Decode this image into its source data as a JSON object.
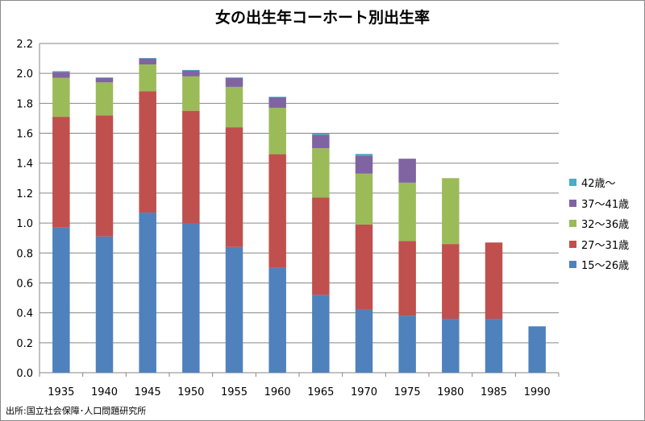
{
  "chart_data": {
    "type": "bar",
    "stacked": true,
    "title": "女の出生年コーホート別出生率",
    "xlabel": "",
    "ylabel": "",
    "categories": [
      "1935",
      "1940",
      "1945",
      "1950",
      "1955",
      "1960",
      "1965",
      "1970",
      "1975",
      "1980",
      "1985",
      "1990"
    ],
    "ylim": [
      0,
      2.2
    ],
    "yticks": [
      "0.0",
      "0.2",
      "0.4",
      "0.6",
      "0.8",
      "1.0",
      "1.2",
      "1.4",
      "1.6",
      "1.8",
      "2.0",
      "2.2"
    ],
    "grid": true,
    "legend_position": "right",
    "series": [
      {
        "name": "15～26歳",
        "color": "#4f81bd",
        "values": [
          0.97,
          0.91,
          1.07,
          1.0,
          0.84,
          0.7,
          0.52,
          0.42,
          0.38,
          0.36,
          0.36,
          0.31
        ]
      },
      {
        "name": "27～31歳",
        "color": "#c0504d",
        "values": [
          0.74,
          0.81,
          0.81,
          0.75,
          0.8,
          0.76,
          0.65,
          0.57,
          0.5,
          0.5,
          0.51,
          null
        ]
      },
      {
        "name": "32～36歳",
        "color": "#9bbb59",
        "values": [
          0.26,
          0.22,
          0.18,
          0.23,
          0.27,
          0.31,
          0.33,
          0.34,
          0.39,
          0.44,
          null,
          null
        ]
      },
      {
        "name": "37～41歳",
        "color": "#8064a2",
        "values": [
          0.04,
          0.03,
          0.04,
          0.04,
          0.06,
          0.07,
          0.09,
          0.12,
          0.16,
          null,
          null,
          null
        ]
      },
      {
        "name": "42歳～",
        "color": "#4bacc6",
        "values": [
          0.005,
          0.003,
          0.003,
          0.003,
          0.003,
          0.004,
          0.008,
          0.012,
          null,
          null,
          null,
          null
        ]
      }
    ]
  },
  "source_note": "出所:国立社会保障･人口問題研究所"
}
